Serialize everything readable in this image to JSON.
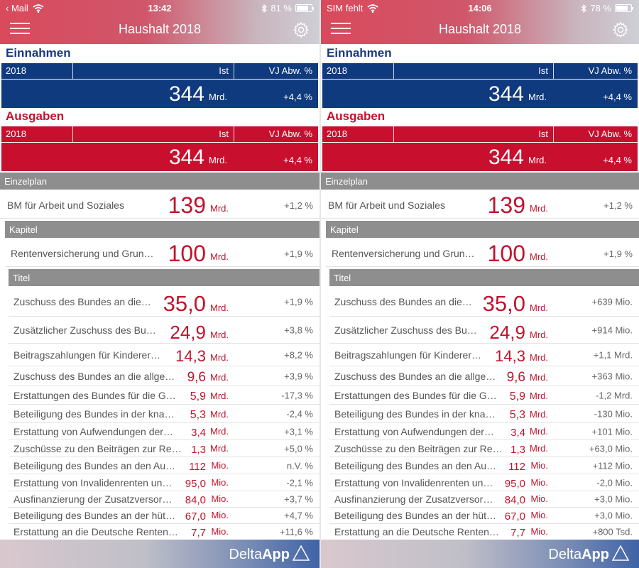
{
  "screens": [
    {
      "status": {
        "left": "Mail",
        "back_arrow": "‹",
        "time": "13:42",
        "battery": "81 %",
        "battery_level": 0.81
      },
      "app_title": "Haushalt 2018",
      "einnahmen": {
        "heading": "Einnahmen",
        "year": "2018",
        "col_ist": "Ist",
        "col_vj": "VJ Abw. %",
        "value": "344",
        "unit": "Mrd.",
        "pct": "+4,4 %"
      },
      "ausgaben": {
        "heading": "Ausgaben",
        "year": "2018",
        "col_ist": "Ist",
        "col_vj": "VJ Abw. %",
        "value": "344",
        "unit": "Mrd.",
        "pct": "+4,4 %"
      },
      "einzelplan": {
        "label": "Einzelplan",
        "name": "BM für Arbeit und Soziales",
        "value": "139",
        "unit": "Mrd.",
        "pct": "+1,2 %"
      },
      "kapitel": {
        "label": "Kapitel",
        "name": "Rentenversicherung und Grun…",
        "value": "100",
        "unit": "Mrd.",
        "pct": "+1,9 %"
      },
      "titel_label": "Titel",
      "titel": [
        {
          "label": "Zuschuss des Bundes an die…",
          "value": "35,0",
          "unit": "Mrd.",
          "pct": "+1,9 %"
        },
        {
          "label": "Zusätzlicher Zuschuss des Bu…",
          "value": "24,9",
          "unit": "Mrd.",
          "pct": "+3,8 %"
        },
        {
          "label": "Beitragszahlungen für Kinderer…",
          "value": "14,3",
          "unit": "Mrd.",
          "pct": "+8,2 %"
        },
        {
          "label": "Zuschuss des Bundes an die allge…",
          "value": "9,6",
          "unit": "Mrd.",
          "pct": "+3,9 %"
        },
        {
          "label": "Erstattungen des Bundes für die G…",
          "value": "5,9",
          "unit": "Mrd.",
          "pct": "-17,3 %"
        },
        {
          "label": "Beteiligung des Bundes in der kna…",
          "value": "5,3",
          "unit": "Mrd.",
          "pct": "-2,4 %"
        },
        {
          "label": "Erstattung von Aufwendungen der…",
          "value": "3,4",
          "unit": "Mrd.",
          "pct": "+3,1 %"
        },
        {
          "label": "Zuschüsse zu den Beiträgen zur Re…",
          "value": "1,3",
          "unit": "Mrd.",
          "pct": "+5,0 %"
        },
        {
          "label": "Beteiligung des Bundes an den Au…",
          "value": "112",
          "unit": "Mio.",
          "pct": "n.V. %"
        },
        {
          "label": "Erstattung von Invalidenrenten un…",
          "value": "95,0",
          "unit": "Mio.",
          "pct": "-2,1 %"
        },
        {
          "label": "Ausfinanzierung der Zusatzversor…",
          "value": "84,0",
          "unit": "Mio.",
          "pct": "+3,7 %"
        },
        {
          "label": "Beteiligung des Bundes an der hüt…",
          "value": "67,0",
          "unit": "Mio.",
          "pct": "+4,7 %"
        },
        {
          "label": "Erstattung an die Deutsche Renten…",
          "value": "7,7",
          "unit": "Mio.",
          "pct": "+11,6 %"
        }
      ],
      "footer": {
        "brand_light": "Delta",
        "brand_bold": "App"
      }
    },
    {
      "status": {
        "left": "SIM fehlt",
        "back_arrow": "",
        "time": "14:06",
        "battery": "78 %",
        "battery_level": 0.78
      },
      "app_title": "Haushalt 2018",
      "einnahmen": {
        "heading": "Einnahmen",
        "year": "2018",
        "col_ist": "Ist",
        "col_vj": "VJ Abw. %",
        "value": "344",
        "unit": "Mrd.",
        "pct": "+4,4 %"
      },
      "ausgaben": {
        "heading": "Ausgaben",
        "year": "2018",
        "col_ist": "Ist",
        "col_vj": "VJ Abw. %",
        "value": "344",
        "unit": "Mrd.",
        "pct": "+4,4 %"
      },
      "einzelplan": {
        "label": "Einzelplan",
        "name": "BM für Arbeit und Soziales",
        "value": "139",
        "unit": "Mrd.",
        "pct": "+1,2 %"
      },
      "kapitel": {
        "label": "Kapitel",
        "name": "Rentenversicherung und Grun…",
        "value": "100",
        "unit": "Mrd.",
        "pct": "+1,9 %"
      },
      "titel_label": "Titel",
      "titel": [
        {
          "label": "Zuschuss des Bundes an die…",
          "value": "35,0",
          "unit": "Mrd.",
          "pct": "+639 Mio."
        },
        {
          "label": "Zusätzlicher Zuschuss des Bu…",
          "value": "24,9",
          "unit": "Mrd.",
          "pct": "+914 Mio."
        },
        {
          "label": "Beitragszahlungen für Kinderer…",
          "value": "14,3",
          "unit": "Mrd.",
          "pct": "+1,1 Mrd."
        },
        {
          "label": "Zuschuss des Bundes an die allge…",
          "value": "9,6",
          "unit": "Mrd.",
          "pct": "+363 Mio."
        },
        {
          "label": "Erstattungen des Bundes für die G…",
          "value": "5,9",
          "unit": "Mrd.",
          "pct": "-1,2 Mrd."
        },
        {
          "label": "Beteiligung des Bundes in der kna…",
          "value": "5,3",
          "unit": "Mrd.",
          "pct": "-130 Mio."
        },
        {
          "label": "Erstattung von Aufwendungen der…",
          "value": "3,4",
          "unit": "Mrd.",
          "pct": "+101 Mio."
        },
        {
          "label": "Zuschüsse zu den Beiträgen zur Re…",
          "value": "1,3",
          "unit": "Mrd.",
          "pct": "+63,0 Mio."
        },
        {
          "label": "Beteiligung des Bundes an den Au…",
          "value": "112",
          "unit": "Mio.",
          "pct": "+112 Mio."
        },
        {
          "label": "Erstattung von Invalidenrenten un…",
          "value": "95,0",
          "unit": "Mio.",
          "pct": "-2,0 Mio."
        },
        {
          "label": "Ausfinanzierung der Zusatzversor…",
          "value": "84,0",
          "unit": "Mio.",
          "pct": "+3,0 Mio."
        },
        {
          "label": "Beteiligung des Bundes an der hüt…",
          "value": "67,0",
          "unit": "Mio.",
          "pct": "+3,0 Mio."
        },
        {
          "label": "Erstattung an die Deutsche Renten…",
          "value": "7,7",
          "unit": "Mio.",
          "pct": "+800 Tsd."
        }
      ],
      "footer": {
        "brand_light": "Delta",
        "brand_bold": "App"
      }
    }
  ]
}
